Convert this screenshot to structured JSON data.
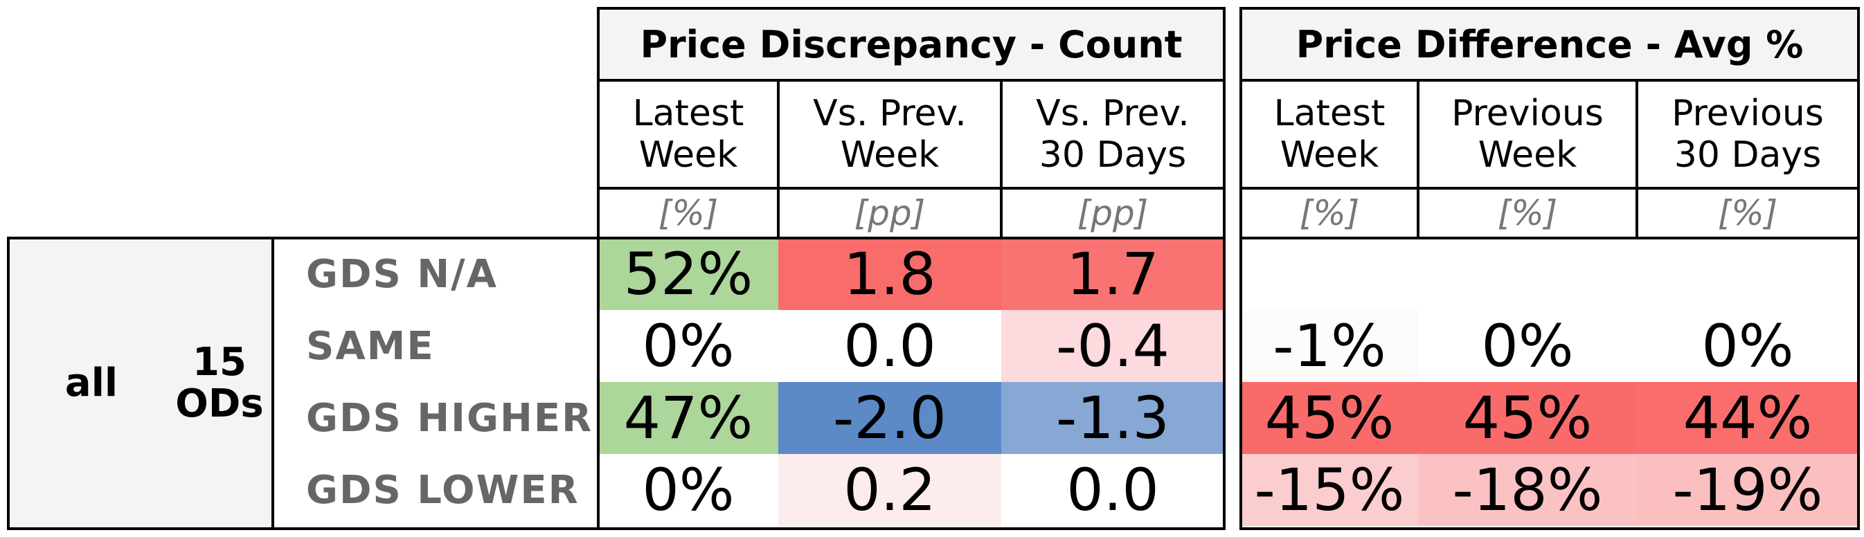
{
  "chart_data": {
    "type": "table",
    "group_label": "all",
    "subgroup_label": "15\nODs",
    "rows": [
      "GDS N/A",
      "SAME",
      "GDS HIGHER",
      "GDS LOWER"
    ],
    "panels": [
      {
        "title": "Price Discrepancy - Count",
        "columns": [
          {
            "header": "Latest\nWeek",
            "unit": "[%]"
          },
          {
            "header": "Vs. Prev.\nWeek",
            "unit": "[pp]"
          },
          {
            "header": "Vs. Prev.\n30 Days",
            "unit": "[pp]"
          }
        ],
        "cells": [
          [
            {
              "text": "52%",
              "bg": "#acd69a"
            },
            {
              "text": "1.8",
              "bg": "#f86c6c"
            },
            {
              "text": "1.7",
              "bg": "#f97373"
            }
          ],
          [
            {
              "text": "0%",
              "bg": "#ffffff"
            },
            {
              "text": "0.0",
              "bg": "#ffffff"
            },
            {
              "text": "-0.4",
              "bg": "#fcdadd"
            }
          ],
          [
            {
              "text": "47%",
              "bg": "#acd69a"
            },
            {
              "text": "-2.0",
              "bg": "#5b8ac7"
            },
            {
              "text": "-1.3",
              "bg": "#87a8d5"
            }
          ],
          [
            {
              "text": "0%",
              "bg": "#ffffff"
            },
            {
              "text": "0.2",
              "bg": "#fdeced"
            },
            {
              "text": "0.0",
              "bg": "#ffffff"
            }
          ]
        ]
      },
      {
        "title": "Price Difference - Avg %",
        "columns": [
          {
            "header": "Latest\nWeek",
            "unit": "[%]"
          },
          {
            "header": "Previous\nWeek",
            "unit": "[%]"
          },
          {
            "header": "Previous\n30 Days",
            "unit": "[%]"
          }
        ],
        "cells": [
          [
            {
              "text": "",
              "bg": "#ffffff"
            },
            {
              "text": "",
              "bg": "#ffffff"
            },
            {
              "text": "",
              "bg": "#ffffff"
            }
          ],
          [
            {
              "text": "-1%",
              "bg": "#fefbfb"
            },
            {
              "text": "0%",
              "bg": "#ffffff"
            },
            {
              "text": "0%",
              "bg": "#ffffff"
            }
          ],
          [
            {
              "text": "45%",
              "bg": "#f96b6b"
            },
            {
              "text": "45%",
              "bg": "#f96b6b"
            },
            {
              "text": "44%",
              "bg": "#f96d6d"
            }
          ],
          [
            {
              "text": "-15%",
              "bg": "#fbcdcf"
            },
            {
              "text": "-18%",
              "bg": "#fbc2c3"
            },
            {
              "text": "-19%",
              "bg": "#fbbfc0"
            }
          ]
        ]
      }
    ]
  }
}
